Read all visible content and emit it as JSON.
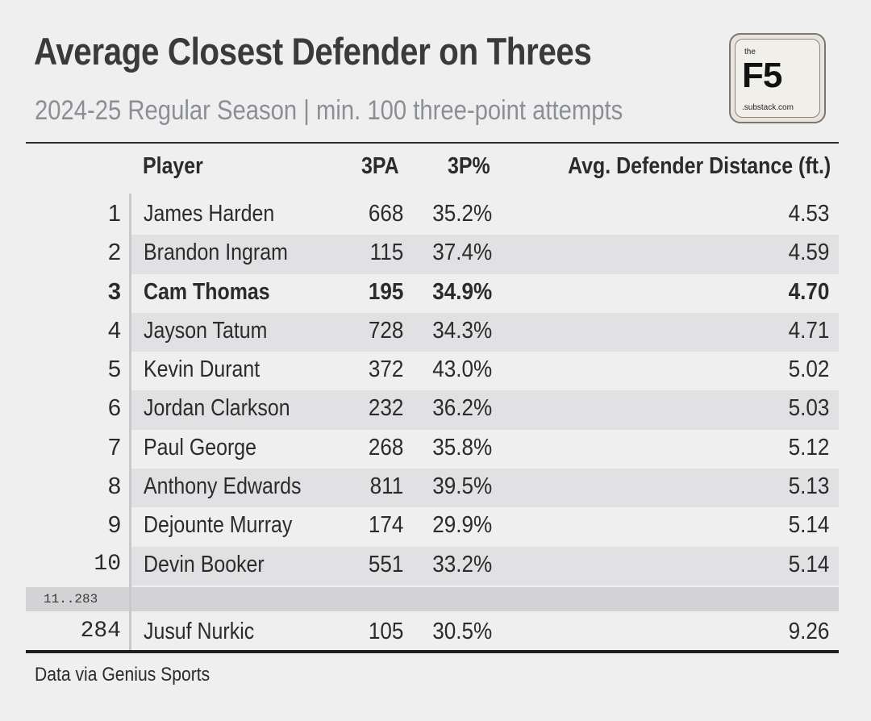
{
  "header": {
    "title": "Average Closest Defender on Threes",
    "subtitle": "2024-25 Regular Season | min. 100 three-point attempts"
  },
  "logo": {
    "the": "the",
    "name": "F5",
    "domain": ".substack.com"
  },
  "table": {
    "columns": {
      "player": "Player",
      "tpa": "3PA",
      "tpp": "3P%",
      "dist": "Avg. Defender Distance (ft.)"
    },
    "rows": [
      {
        "rank": "1",
        "player": "James Harden",
        "tpa": "668",
        "tpp": "35.2%",
        "dist": "4.53"
      },
      {
        "rank": "2",
        "player": "Brandon Ingram",
        "tpa": "115",
        "tpp": "37.4%",
        "dist": "4.59"
      },
      {
        "rank": "3",
        "player": "Cam Thomas",
        "tpa": "195",
        "tpp": "34.9%",
        "dist": "4.70"
      },
      {
        "rank": "4",
        "player": "Jayson Tatum",
        "tpa": "728",
        "tpp": "34.3%",
        "dist": "4.71"
      },
      {
        "rank": "5",
        "player": "Kevin Durant",
        "tpa": "372",
        "tpp": "43.0%",
        "dist": "5.02"
      },
      {
        "rank": "6",
        "player": "Jordan Clarkson",
        "tpa": "232",
        "tpp": "36.2%",
        "dist": "5.03"
      },
      {
        "rank": "7",
        "player": "Paul George",
        "tpa": "268",
        "tpp": "35.8%",
        "dist": "5.12"
      },
      {
        "rank": "8",
        "player": "Anthony Edwards",
        "tpa": "811",
        "tpp": "39.5%",
        "dist": "5.13"
      },
      {
        "rank": "9",
        "player": "Dejounte Murray",
        "tpa": "174",
        "tpp": "29.9%",
        "dist": "5.14"
      },
      {
        "rank": "10",
        "player": "Devin Booker",
        "tpa": "551",
        "tpp": "33.2%",
        "dist": "5.14"
      }
    ],
    "gap_label": "11..283",
    "last_row": {
      "rank": "284",
      "player": "Jusuf Nurkic",
      "tpa": "105",
      "tpp": "30.5%",
      "dist": "9.26"
    },
    "highlight_rank": "3"
  },
  "footer": {
    "source": "Data via Genius Sports"
  },
  "colors": {
    "background": "#efeff0",
    "band": "#e1e1e4",
    "gap": "#d3d3d6",
    "subtitle": "#8b8f95"
  }
}
